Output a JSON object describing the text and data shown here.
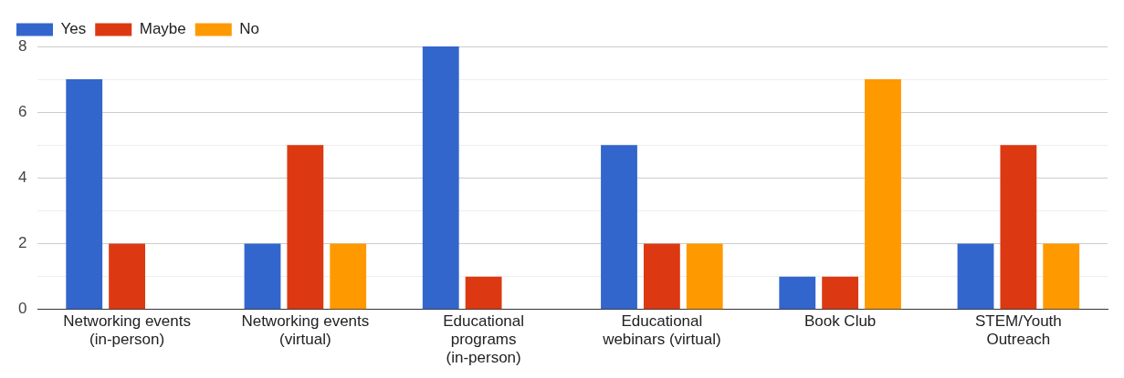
{
  "chart_data": {
    "type": "bar",
    "categories": [
      "Networking events (in-person)",
      "Networking events (virtual)",
      "Educational programs (in-person)",
      "Educational webinars (virtual)",
      "Book Club",
      "STEM/Youth Outreach"
    ],
    "series": [
      {
        "name": "Yes",
        "color": "#3366cc",
        "values": [
          7,
          2,
          8,
          5,
          1,
          2
        ]
      },
      {
        "name": "Maybe",
        "color": "#dc3912",
        "values": [
          2,
          5,
          1,
          2,
          1,
          5
        ]
      },
      {
        "name": "No",
        "color": "#ff9900",
        "values": [
          0,
          2,
          0,
          2,
          7,
          2
        ]
      }
    ],
    "ylim": [
      0,
      8
    ],
    "yticks": [
      0,
      {
        "value": 1,
        "label": null
      },
      2,
      {
        "value": 3,
        "label": null
      },
      4,
      {
        "value": 5,
        "label": null
      },
      6,
      {
        "value": 7,
        "label": null
      },
      8
    ],
    "grid": "y",
    "legend": "top left"
  }
}
